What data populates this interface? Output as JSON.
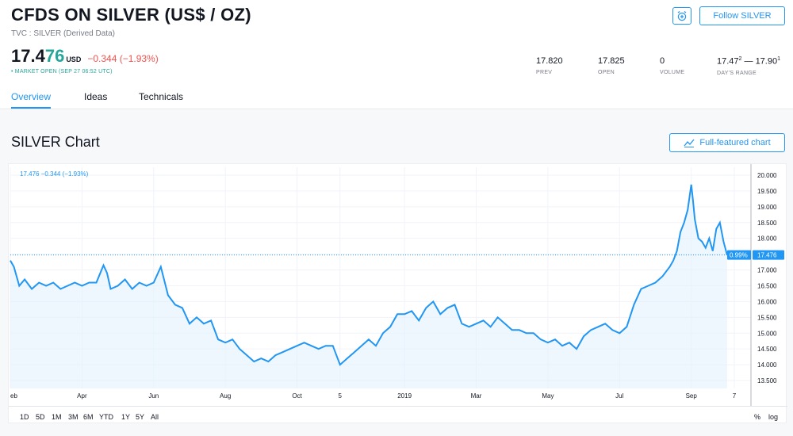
{
  "header": {
    "title": "CFDS ON SILVER (US$ / OZ)",
    "subtitle": "TVC : SILVER (Derived Data)",
    "price_main": "17.4",
    "price_tail": "76",
    "price_unit": "USD",
    "price_change": "−0.344 (−1.93%)",
    "market_status": "• MARKET OPEN (SEP 27 06:52 UTC)",
    "follow_label": "Follow SILVER",
    "alert_icon": "alarm-clock-plus-icon"
  },
  "stats": [
    {
      "value": "17.820",
      "label": "PREV"
    },
    {
      "value": "17.825",
      "label": "OPEN"
    },
    {
      "value": "0",
      "label": "VOLUME"
    }
  ],
  "days_range": {
    "low": "17.47",
    "low_sup": "2",
    "sep": " — ",
    "high": "17.90",
    "high_sup": "1",
    "label": "DAY'S RANGE"
  },
  "tabs": [
    {
      "label": "Overview",
      "active": true
    },
    {
      "label": "Ideas",
      "active": false
    },
    {
      "label": "Technicals",
      "active": false
    }
  ],
  "section": {
    "title": "SILVER Chart",
    "full_chart_label": "Full-featured chart"
  },
  "chart_data": {
    "type": "area",
    "legend": "17.476  −0.344 (−1.93%)",
    "last_value": 17.476,
    "last_label": "17.476",
    "percent_label": "0.99%",
    "ylim": [
      13.25,
      20.25
    ],
    "y_ticks": [
      "13.500",
      "14.000",
      "14.500",
      "15.000",
      "15.500",
      "16.000",
      "16.500",
      "17.000",
      "17.500",
      "18.000",
      "18.500",
      "19.000",
      "19.500",
      "20.000"
    ],
    "x_ticks": [
      {
        "label": "eb",
        "x": 0
      },
      {
        "label": "Apr",
        "x": 2
      },
      {
        "label": "Jun",
        "x": 4
      },
      {
        "label": "Aug",
        "x": 6
      },
      {
        "label": "Oct",
        "x": 8
      },
      {
        "label": "5",
        "x": 9.2
      },
      {
        "label": "2019",
        "x": 11
      },
      {
        "label": "Mar",
        "x": 13
      },
      {
        "label": "May",
        "x": 15
      },
      {
        "label": "Jul",
        "x": 17
      },
      {
        "label": "Sep",
        "x": 19
      },
      {
        "label": "7",
        "x": 20.2
      }
    ],
    "xlim": [
      0,
      20.6
    ],
    "series": [
      {
        "x": [
          0,
          0.1,
          0.25,
          0.4,
          0.6,
          0.8,
          1.0,
          1.2,
          1.4,
          1.6,
          1.8,
          2.0,
          2.2,
          2.4,
          2.6,
          2.7,
          2.8,
          3.0,
          3.2,
          3.4,
          3.6,
          3.8,
          4.0,
          4.2,
          4.4,
          4.6,
          4.8,
          5.0,
          5.2,
          5.4,
          5.6,
          5.8,
          6.0,
          6.2,
          6.4,
          6.6,
          6.8,
          7.0,
          7.2,
          7.4,
          7.6,
          7.8,
          8.0,
          8.2,
          8.4,
          8.6,
          8.8,
          9.0,
          9.2,
          9.4,
          9.6,
          9.8,
          10.0,
          10.2,
          10.4,
          10.6,
          10.8,
          11.0,
          11.2,
          11.4,
          11.6,
          11.8,
          12.0,
          12.2,
          12.4,
          12.6,
          12.8,
          13.0,
          13.2,
          13.4,
          13.6,
          13.8,
          14.0,
          14.2,
          14.4,
          14.6,
          14.8,
          15.0,
          15.2,
          15.4,
          15.6,
          15.8,
          16.0,
          16.2,
          16.4,
          16.6,
          16.8,
          17.0,
          17.2,
          17.4,
          17.6,
          17.8,
          18.0,
          18.2,
          18.4,
          18.5,
          18.6,
          18.7,
          18.8,
          18.9,
          19.0,
          19.05,
          19.1,
          19.2,
          19.3,
          19.4,
          19.5,
          19.6,
          19.7,
          19.8,
          19.9,
          20.0
        ],
        "values": [
          17.3,
          17.1,
          16.5,
          16.7,
          16.4,
          16.6,
          16.5,
          16.6,
          16.4,
          16.5,
          16.6,
          16.5,
          16.6,
          16.6,
          17.15,
          16.9,
          16.4,
          16.5,
          16.7,
          16.4,
          16.6,
          16.5,
          16.6,
          17.1,
          16.2,
          15.9,
          15.8,
          15.3,
          15.5,
          15.3,
          15.4,
          14.8,
          14.7,
          14.8,
          14.5,
          14.3,
          14.1,
          14.2,
          14.1,
          14.3,
          14.4,
          14.5,
          14.6,
          14.7,
          14.6,
          14.5,
          14.6,
          14.6,
          14.0,
          14.2,
          14.4,
          14.6,
          14.8,
          14.6,
          15.0,
          15.2,
          15.6,
          15.6,
          15.7,
          15.4,
          15.8,
          16.0,
          15.6,
          15.8,
          15.9,
          15.3,
          15.2,
          15.3,
          15.4,
          15.2,
          15.5,
          15.3,
          15.1,
          15.1,
          15.0,
          15.0,
          14.8,
          14.7,
          14.8,
          14.6,
          14.7,
          14.5,
          14.9,
          15.1,
          15.2,
          15.3,
          15.1,
          15.0,
          15.2,
          15.9,
          16.4,
          16.5,
          16.6,
          16.8,
          17.1,
          17.3,
          17.6,
          18.2,
          18.5,
          18.9,
          19.7,
          19.2,
          18.6,
          18.0,
          17.9,
          17.7,
          18.0,
          17.6,
          18.3,
          18.5,
          17.9,
          17.476
        ]
      }
    ],
    "range_buttons": [
      "1D",
      "5D",
      "1M",
      "3M",
      "6M",
      "YTD",
      "1Y",
      "5Y",
      "All"
    ],
    "scale_buttons": [
      "%",
      "log"
    ]
  }
}
